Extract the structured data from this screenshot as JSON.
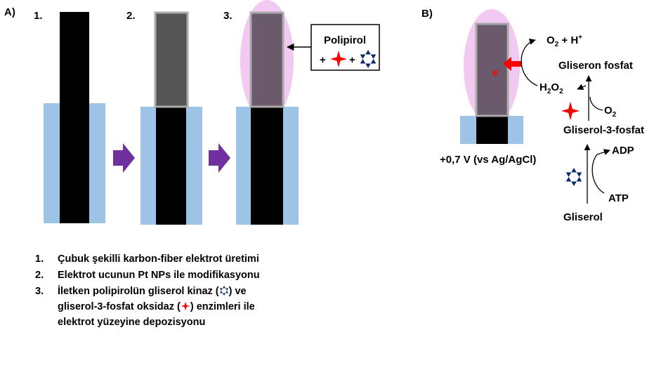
{
  "panel_a": {
    "label": "A)",
    "steps": [
      "1.",
      "2.",
      "3."
    ],
    "box": {
      "title": "Polipirol",
      "plus": [
        "+",
        "+"
      ]
    }
  },
  "panel_b": {
    "label": "B)",
    "potential": "+0,7 V (vs Ag/AgCl)",
    "electron": [
      "e",
      "-"
    ],
    "products": [
      "O",
      "2",
      " + H",
      "+"
    ],
    "peroxide": [
      "H",
      "2",
      "O",
      "2"
    ],
    "oxygen": [
      "O",
      "2"
    ],
    "gliseron_fosfat": "Gliseron fosfat",
    "gliserol_3_fosfat": "Gliserol-3-fosfat",
    "adp": "ADP",
    "atp": "ATP",
    "gliserol": "Gliserol"
  },
  "legend": [
    {
      "number": "1.",
      "text": [
        "Çubuk şekilli karbon-fiber elektrot üretimi"
      ]
    },
    {
      "number": "2.",
      "text": [
        "Elektrot ucunun Pt NPs ile modifikasyonu"
      ]
    },
    {
      "number": "3.",
      "text": [
        "İletken polipirolün gliserol kinaz (",
        ") ve gliserol-3-fosfat oksidaz (",
        ") enzimleri ile elektrot yüzeyine depozisyonu"
      ]
    }
  ]
}
